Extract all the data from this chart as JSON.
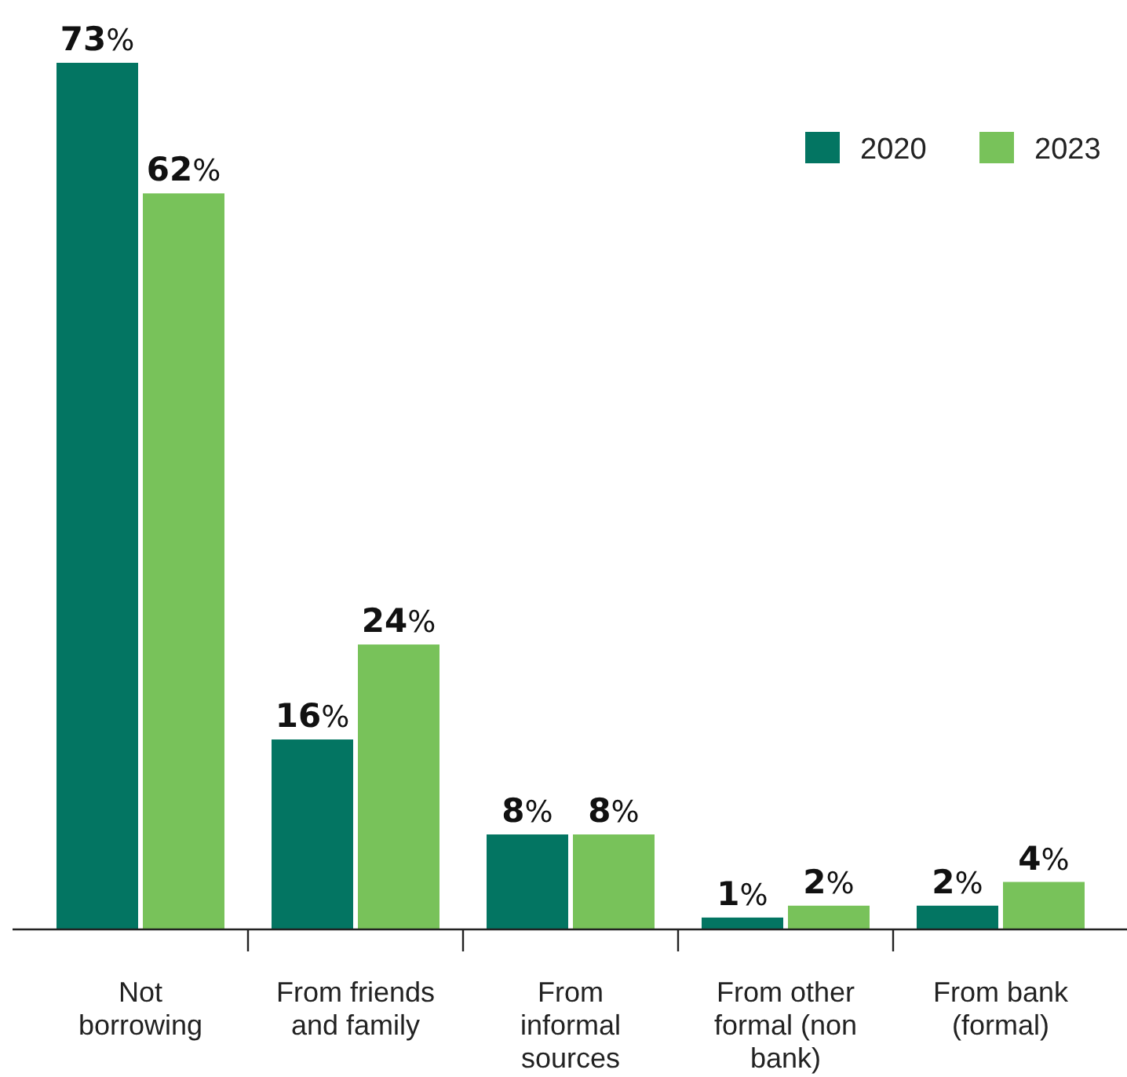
{
  "chart_data": {
    "type": "bar",
    "categories": [
      "Not\nborrowing",
      "From friends\nand family",
      "From\ninformal\nsources",
      "From other\nformal (non\nbank)",
      "From bank\n(formal)"
    ],
    "series": [
      {
        "name": "2020",
        "color": "#037562",
        "values": [
          73,
          16,
          8,
          1,
          2
        ],
        "value_labels": [
          "73%",
          "16%",
          "8%",
          "1%",
          "2%"
        ]
      },
      {
        "name": "2023",
        "color": "#78c25a",
        "values": [
          62,
          24,
          8,
          2,
          4
        ],
        "value_labels": [
          "62%",
          "24%",
          "8%",
          "2%",
          "4%"
        ]
      }
    ],
    "legend": "top right"
  }
}
